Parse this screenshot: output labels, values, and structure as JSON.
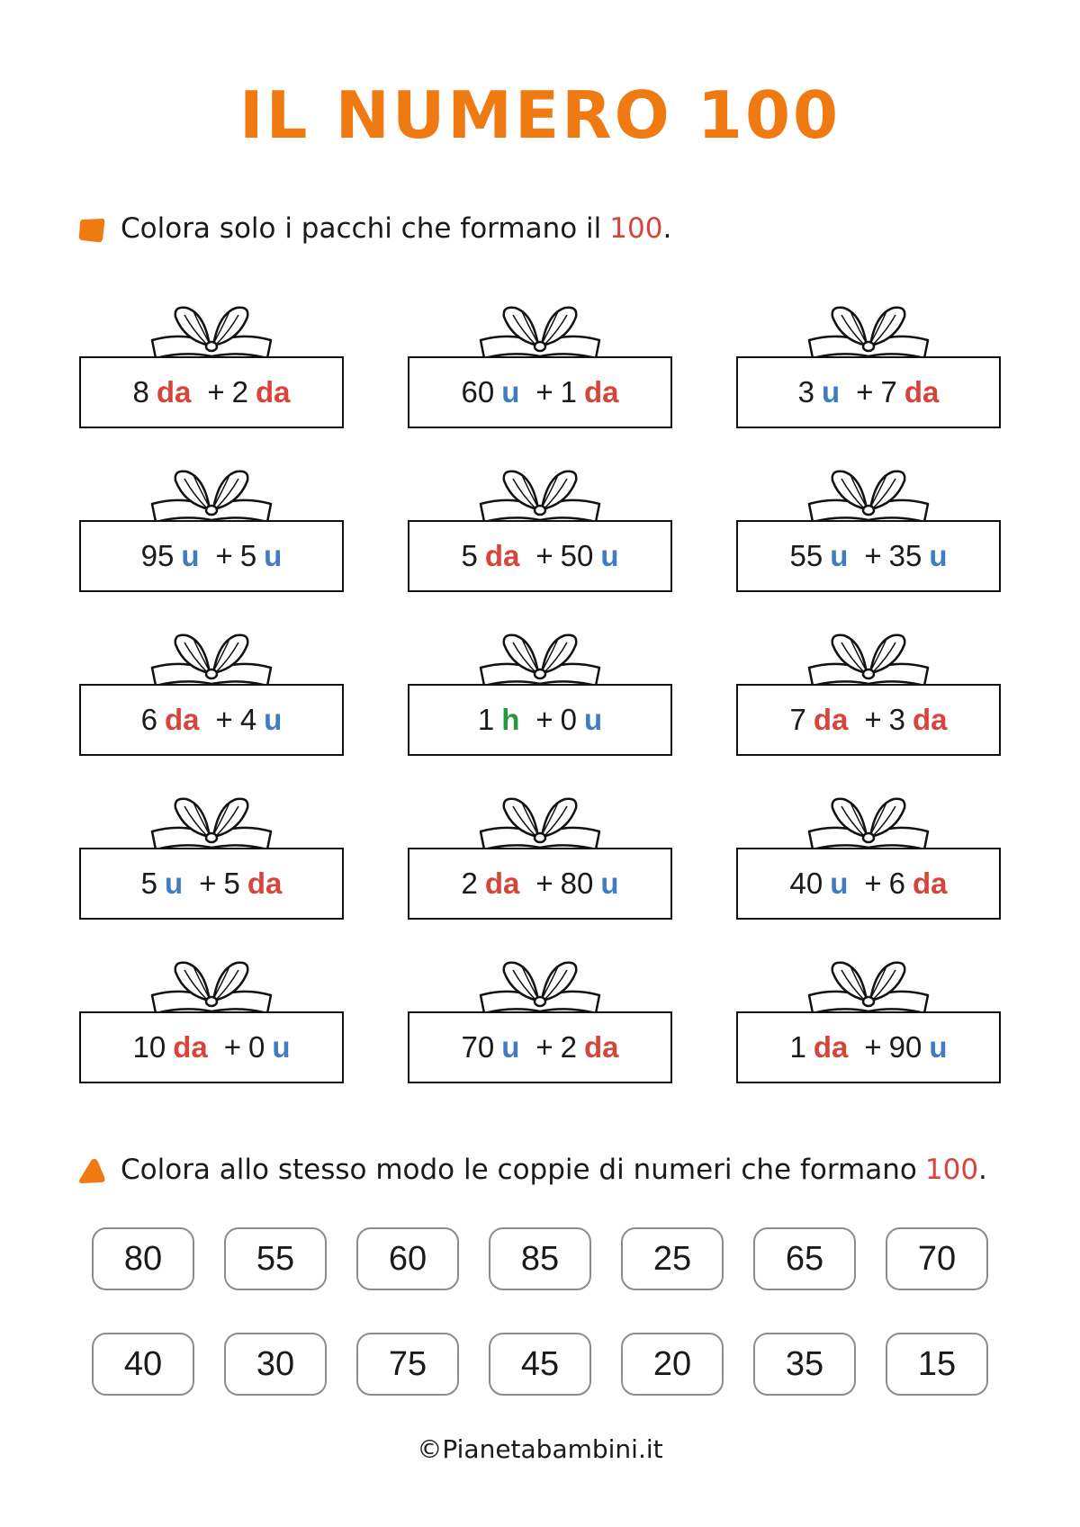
{
  "header": {
    "title": "IL NUMERO 100"
  },
  "unit_colors": {
    "da": "#d6443a",
    "u": "#3f7cc4",
    "h": "#25993a"
  },
  "instructions": [
    {
      "text": "Colora solo i pacchi che formano il",
      "highlight": "100",
      "end": "."
    },
    {
      "text": "Colora allo stesso modo le coppie di numeri che formano",
      "highlight": "100",
      "end": "."
    }
  ],
  "gifts": [
    [
      {
        "a": 8,
        "au": "da",
        "op": "+",
        "b": 2,
        "bu": "da"
      },
      {
        "a": 60,
        "au": "u",
        "op": "+",
        "b": 1,
        "bu": "da"
      },
      {
        "a": 3,
        "au": "u",
        "op": "+",
        "b": 7,
        "bu": "da"
      }
    ],
    [
      {
        "a": 95,
        "au": "u",
        "op": "+",
        "b": 5,
        "bu": "u"
      },
      {
        "a": 5,
        "au": "da",
        "op": "+",
        "b": 50,
        "bu": "u"
      },
      {
        "a": 55,
        "au": "u",
        "op": "+",
        "b": 35,
        "bu": "u"
      }
    ],
    [
      {
        "a": 6,
        "au": "da",
        "op": "+",
        "b": 4,
        "bu": "u"
      },
      {
        "a": 1,
        "au": "h",
        "op": "+",
        "b": 0,
        "bu": "u"
      },
      {
        "a": 7,
        "au": "da",
        "op": "+",
        "b": 3,
        "bu": "da"
      }
    ],
    [
      {
        "a": 5,
        "au": "u",
        "op": "+",
        "b": 5,
        "bu": "da"
      },
      {
        "a": 2,
        "au": "da",
        "op": "+",
        "b": 80,
        "bu": "u"
      },
      {
        "a": 40,
        "au": "u",
        "op": "+",
        "b": 6,
        "bu": "da"
      }
    ],
    [
      {
        "a": 10,
        "au": "da",
        "op": "+",
        "b": 0,
        "bu": "u"
      },
      {
        "a": 70,
        "au": "u",
        "op": "+",
        "b": 2,
        "bu": "da"
      },
      {
        "a": 1,
        "au": "da",
        "op": "+",
        "b": 90,
        "bu": "u"
      }
    ]
  ],
  "numbers": [
    [
      80,
      55,
      60,
      85,
      25,
      65,
      70
    ],
    [
      40,
      30,
      75,
      45,
      20,
      35,
      15
    ]
  ],
  "footer": "©Pianetabambini.it"
}
